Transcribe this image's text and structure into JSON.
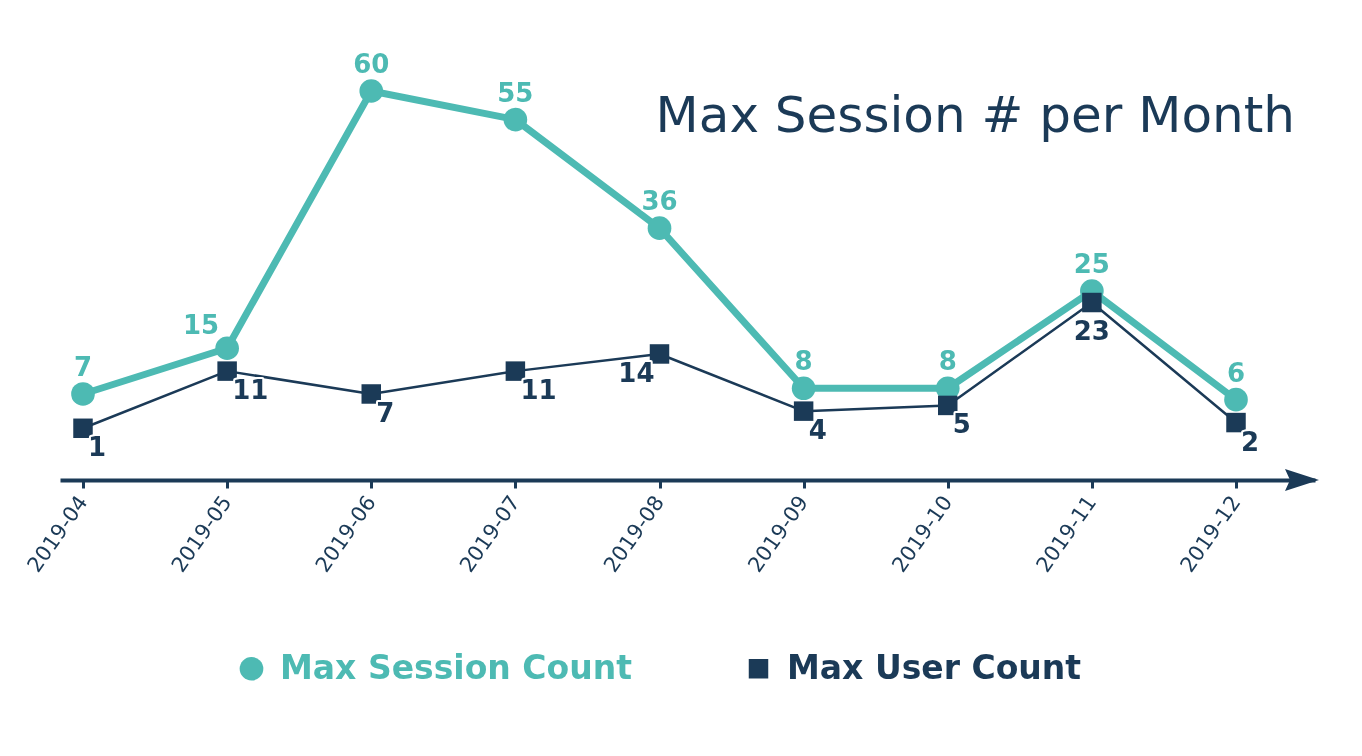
{
  "chart_data": {
    "type": "line",
    "title": "Max Session # per Month",
    "categories": [
      "2019-04",
      "2019-05",
      "2019-06",
      "2019-07",
      "2019-08",
      "2019-09",
      "2019-10",
      "2019-11",
      "2019-12"
    ],
    "series": [
      {
        "name": "Max Session Count",
        "color": "#4dbab3",
        "marker": "circle",
        "values": [
          7,
          15,
          60,
          55,
          36,
          8,
          8,
          25,
          6
        ]
      },
      {
        "name": "Max User Count",
        "color": "#1b3a57",
        "marker": "square",
        "values": [
          1,
          11,
          7,
          11,
          14,
          4,
          5,
          23,
          2
        ]
      }
    ],
    "data_labels": true,
    "legend": "bottom",
    "tick_labels": "x"
  }
}
